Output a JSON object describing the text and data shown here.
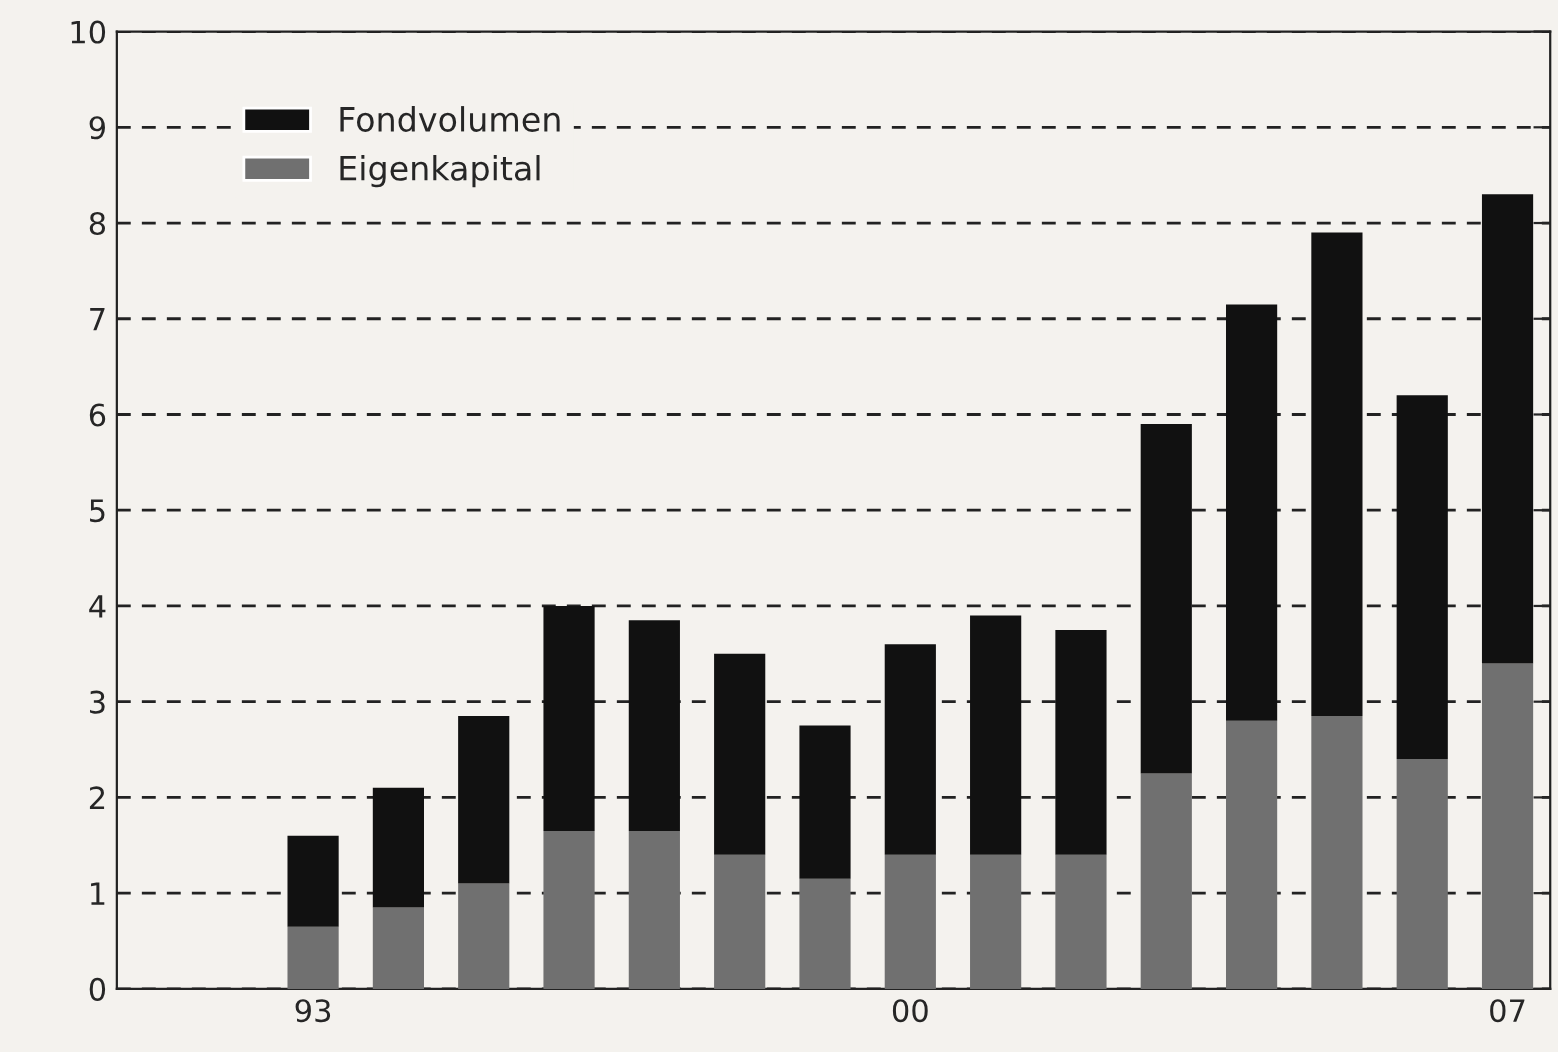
{
  "chart_data": {
    "type": "bar",
    "stacked": true,
    "categories": [
      "93",
      null,
      null,
      null,
      null,
      null,
      null,
      "00",
      null,
      null,
      null,
      null,
      null,
      null,
      "07"
    ],
    "series": [
      {
        "name": "Eigenkapital",
        "color": "#707070",
        "values": [
          0.65,
          0.85,
          1.1,
          1.65,
          1.65,
          1.4,
          1.15,
          1.4,
          1.4,
          1.4,
          2.25,
          2.8,
          2.85,
          2.4,
          3.4
        ]
      },
      {
        "name": "Fondvolumen",
        "color": "#111111",
        "values": [
          0.95,
          1.25,
          1.75,
          2.35,
          2.2,
          2.1,
          1.6,
          2.2,
          2.5,
          2.35,
          3.65,
          4.35,
          5.05,
          3.8,
          4.9
        ]
      }
    ],
    "ylim": [
      0,
      10
    ],
    "yticks": [
      0,
      1,
      2,
      3,
      4,
      5,
      6,
      7,
      8,
      9,
      10
    ],
    "grid": "y",
    "legend": "top left"
  }
}
